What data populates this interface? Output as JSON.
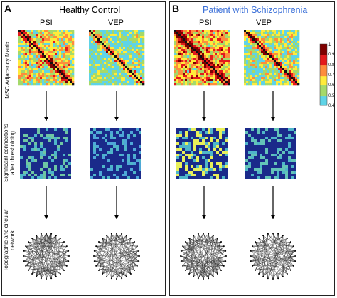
{
  "panels": [
    {
      "id": "A",
      "letter": "A",
      "title": "Healthy Control",
      "title_color": "#111111"
    },
    {
      "id": "B",
      "letter": "B",
      "title": "Patient with Schizophrenia",
      "title_color": "#3a6fd8"
    }
  ],
  "columns": {
    "left": "PSI",
    "right": "VEP"
  },
  "row_labels": {
    "r1": "MSC Adjacency Matrix",
    "r2a": "Significant connections",
    "r2b": "after thresholding",
    "r3a": "Topographic and circular",
    "r3b": "network"
  },
  "colorbar": {
    "ticks": [
      "1",
      "0.9",
      "0.8",
      "0.7",
      "0.6",
      "0.5",
      "0.4"
    ],
    "colors": [
      "#7f0000",
      "#e31a1c",
      "#fd8d3c",
      "#ffeb3b",
      "#a5d96a",
      "#5fd3e6"
    ]
  },
  "colors": {
    "matrix_dark": "#1a2a8a",
    "matrix_light": "#e8f05a",
    "network_edge": "#222222"
  }
}
